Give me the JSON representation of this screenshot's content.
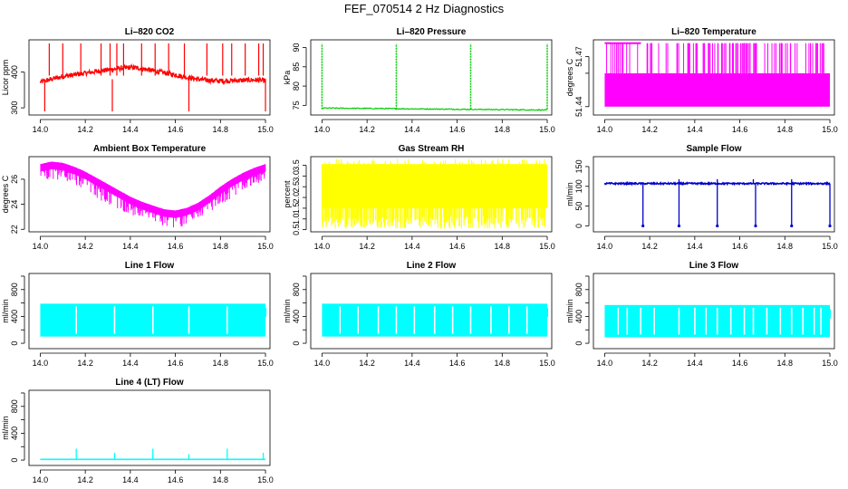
{
  "page_title": "FEF_070514  2 Hz Diagnostics",
  "chart_data": [
    {
      "type": "line",
      "title": "Li–820 CO2",
      "ylabel": "Licor ppm",
      "color": "#ff0000",
      "xlim": [
        13.95,
        15.02
      ],
      "ylim": [
        280,
        490
      ],
      "x_ticks": [
        "14.0",
        "14.2",
        "14.4",
        "14.6",
        "14.8",
        "15.0"
      ],
      "x_tick_values": [
        14.0,
        14.2,
        14.4,
        14.6,
        14.8,
        15.0
      ],
      "y_ticks": [
        "300",
        "400"
      ],
      "y_tick_values": [
        300,
        400
      ],
      "x": [
        14.0,
        14.05,
        14.1,
        14.15,
        14.2,
        14.25,
        14.3,
        14.35,
        14.4,
        14.45,
        14.5,
        14.55,
        14.6,
        14.65,
        14.7,
        14.75,
        14.8,
        14.85,
        14.9,
        14.95,
        15.0
      ],
      "y": [
        372,
        380,
        388,
        392,
        397,
        402,
        406,
        410,
        413,
        410,
        404,
        398,
        392,
        385,
        380,
        377,
        375,
        376,
        377,
        378,
        376
      ],
      "spikes_up_x": [
        14.04,
        14.1,
        14.18,
        14.27,
        14.31,
        14.34,
        14.37,
        14.45,
        14.51,
        14.57,
        14.64,
        14.74,
        14.81,
        14.85,
        14.91,
        14.97,
        14.99
      ],
      "spikes_up_y": 480,
      "spikes_down_x": [
        14.02,
        14.32,
        14.66,
        15.0
      ],
      "spikes_down_y": 290
    },
    {
      "type": "line",
      "title": "Li–820 Pressure",
      "ylabel": "kPa",
      "color": "#00cc00",
      "xlim": [
        13.95,
        15.02
      ],
      "ylim": [
        72.5,
        92
      ],
      "x_ticks": [
        "14.0",
        "14.2",
        "14.4",
        "14.6",
        "14.8",
        "15.0"
      ],
      "x_tick_values": [
        14.0,
        14.2,
        14.4,
        14.6,
        14.8,
        15.0
      ],
      "y_ticks": [
        "75",
        "80",
        "85",
        "90"
      ],
      "y_tick_values": [
        75,
        80,
        85,
        90
      ],
      "x": [
        14.0,
        14.2,
        14.4,
        14.6,
        14.8,
        15.0
      ],
      "y": [
        74.3,
        74.1,
        74.0,
        73.9,
        73.9,
        73.8
      ],
      "spikes_up_x": [
        14.0,
        14.33,
        14.66,
        15.0
      ],
      "spikes_up_y": 91
    },
    {
      "type": "line",
      "title": "Li–820 Temperature",
      "ylabel": "degrees C",
      "color": "#ff00ff",
      "xlim": [
        13.95,
        15.02
      ],
      "ylim": [
        51.435,
        51.48
      ],
      "x_ticks": [
        "14.0",
        "14.2",
        "14.4",
        "14.6",
        "14.8",
        "15.0"
      ],
      "x_tick_values": [
        14.0,
        14.2,
        14.4,
        14.6,
        14.8,
        15.0
      ],
      "y_ticks": [
        "51.44",
        "51.47"
      ],
      "y_tick_values": [
        51.44,
        51.47
      ],
      "y_ticks_extra": [
        "51.46"
      ],
      "y_tick_values_extra": [
        51.46
      ],
      "levels": [
        51.44,
        51.46,
        51.478
      ]
    },
    {
      "type": "line",
      "title": "Ambient Box Temperature",
      "ylabel": "degrees C",
      "color": "#ff00ff",
      "xlim": [
        13.95,
        15.02
      ],
      "ylim": [
        21.8,
        27.8
      ],
      "x_ticks": [
        "14.0",
        "14.2",
        "14.4",
        "14.6",
        "14.8",
        "15.0"
      ],
      "x_tick_values": [
        14.0,
        14.2,
        14.4,
        14.6,
        14.8,
        15.0
      ],
      "y_ticks": [
        "22",
        "24",
        "26"
      ],
      "y_tick_values": [
        22,
        24,
        26
      ],
      "x": [
        14.0,
        14.05,
        14.1,
        14.15,
        14.2,
        14.25,
        14.3,
        14.35,
        14.4,
        14.45,
        14.5,
        14.55,
        14.6,
        14.65,
        14.7,
        14.75,
        14.8,
        14.85,
        14.9,
        14.95,
        15.0
      ],
      "y_upper": [
        27.2,
        27.4,
        27.3,
        27.0,
        26.6,
        26.1,
        25.6,
        25.1,
        24.6,
        24.2,
        23.9,
        23.6,
        23.5,
        23.7,
        24.1,
        24.7,
        25.4,
        26.0,
        26.5,
        26.9,
        27.2
      ],
      "y_lower": [
        25.8,
        26.0,
        25.8,
        25.5,
        25.0,
        24.5,
        24.0,
        23.5,
        23.1,
        22.7,
        22.4,
        22.2,
        22.1,
        22.3,
        22.7,
        23.3,
        23.9,
        24.5,
        25.0,
        25.5,
        25.9
      ]
    },
    {
      "type": "line",
      "title": "Gas Stream RH",
      "ylabel": "percent",
      "color": "#ffff00",
      "xlim": [
        13.95,
        15.02
      ],
      "ylim": [
        0.4,
        3.9
      ],
      "x_ticks": [
        "14.0",
        "14.2",
        "14.4",
        "14.6",
        "14.8",
        "15.0"
      ],
      "x_tick_values": [
        14.0,
        14.2,
        14.4,
        14.6,
        14.8,
        15.0
      ],
      "y_ticks": [
        "0.5",
        "1.0",
        "1.5",
        "2.0",
        "2.5",
        "3.0",
        "3.5"
      ],
      "y_tick_values": [
        0.5,
        1.0,
        1.5,
        2.0,
        2.5,
        3.0,
        3.5
      ],
      "band_upper": 3.55,
      "band_lower": 0.9,
      "spike_min": 0.55,
      "spike_max": 3.8
    },
    {
      "type": "line",
      "title": "Sample Flow",
      "ylabel": "ml/min",
      "color": "#0000cc",
      "xlim": [
        13.95,
        15.02
      ],
      "ylim": [
        -15,
        175
      ],
      "x_ticks": [
        "14.0",
        "14.2",
        "14.4",
        "14.6",
        "14.8",
        "15.0"
      ],
      "x_tick_values": [
        14.0,
        14.2,
        14.4,
        14.6,
        14.8,
        15.0
      ],
      "y_ticks": [
        "0",
        "50",
        "100",
        "150"
      ],
      "y_tick_values": [
        0,
        50,
        100,
        150
      ],
      "baseline": 107,
      "drops_x": [
        14.17,
        14.33,
        14.5,
        14.67,
        14.83,
        15.0
      ],
      "drops_y": 0,
      "peaks_x": [
        14.33,
        14.5,
        14.66,
        14.83
      ],
      "peaks_y": 118
    },
    {
      "type": "area",
      "title": "Line 1 Flow",
      "ylabel": "ml/min",
      "color": "#00ffff",
      "xlim": [
        13.95,
        15.02
      ],
      "ylim": [
        -80,
        1040
      ],
      "x_ticks": [
        "14.0",
        "14.2",
        "14.4",
        "14.6",
        "14.8",
        "15.0"
      ],
      "x_tick_values": [
        14.0,
        14.2,
        14.4,
        14.6,
        14.8,
        15.0
      ],
      "y_ticks": [
        "0",
        "400",
        "800"
      ],
      "y_tick_values": [
        0,
        400,
        800
      ],
      "y_ticks_minor": [
        200,
        600,
        1000
      ],
      "upper": 590,
      "lower": 100,
      "gaps_x": [
        14.16,
        14.33,
        14.5,
        14.66,
        14.83
      ]
    },
    {
      "type": "area",
      "title": "Line 2 Flow",
      "ylabel": "ml/min",
      "color": "#00ffff",
      "xlim": [
        13.95,
        15.02
      ],
      "ylim": [
        -80,
        1040
      ],
      "x_ticks": [
        "14.0",
        "14.2",
        "14.4",
        "14.6",
        "14.8",
        "15.0"
      ],
      "x_tick_values": [
        14.0,
        14.2,
        14.4,
        14.6,
        14.8,
        15.0
      ],
      "y_ticks": [
        "0",
        "400",
        "800"
      ],
      "y_tick_values": [
        0,
        400,
        800
      ],
      "y_ticks_minor": [
        200,
        600,
        1000
      ],
      "upper": 590,
      "lower": 100,
      "gaps_x": [
        14.08,
        14.16,
        14.25,
        14.33,
        14.41,
        14.5,
        14.58,
        14.66,
        14.75,
        14.83,
        14.91
      ]
    },
    {
      "type": "area",
      "title": "Line 3 Flow",
      "ylabel": "ml/min",
      "color": "#00ffff",
      "xlim": [
        13.95,
        15.02
      ],
      "ylim": [
        -80,
        1040
      ],
      "x_ticks": [
        "14.0",
        "14.2",
        "14.4",
        "14.6",
        "14.8",
        "15.0"
      ],
      "x_tick_values": [
        14.0,
        14.2,
        14.4,
        14.6,
        14.8,
        15.0
      ],
      "y_ticks": [
        "0",
        "400",
        "800"
      ],
      "y_tick_values": [
        0,
        400,
        800
      ],
      "y_ticks_minor": [
        200,
        600,
        1000
      ],
      "upper": 570,
      "lower": 90,
      "gaps_x": [
        14.06,
        14.1,
        14.16,
        14.22,
        14.33,
        14.4,
        14.45,
        14.5,
        14.56,
        14.62,
        14.66,
        14.72,
        14.78,
        14.83,
        14.88,
        14.93,
        14.96
      ]
    },
    {
      "type": "line",
      "title": "Line 4 (LT) Flow",
      "ylabel": "ml/min",
      "color": "#00ffff",
      "xlim": [
        13.95,
        15.02
      ],
      "ylim": [
        -80,
        1040
      ],
      "x_ticks": [
        "14.0",
        "14.2",
        "14.4",
        "14.6",
        "14.8",
        "15.0"
      ],
      "x_tick_values": [
        14.0,
        14.2,
        14.4,
        14.6,
        14.8,
        15.0
      ],
      "y_ticks": [
        "0",
        "400",
        "800"
      ],
      "y_tick_values": [
        0,
        400,
        800
      ],
      "y_ticks_minor": [
        200,
        600,
        1000
      ],
      "baseline": 10,
      "spikes_x": [
        14.16,
        14.33,
        14.5,
        14.66,
        14.83,
        14.99
      ],
      "spikes_y": [
        170,
        110,
        170,
        90,
        170,
        110
      ]
    }
  ]
}
